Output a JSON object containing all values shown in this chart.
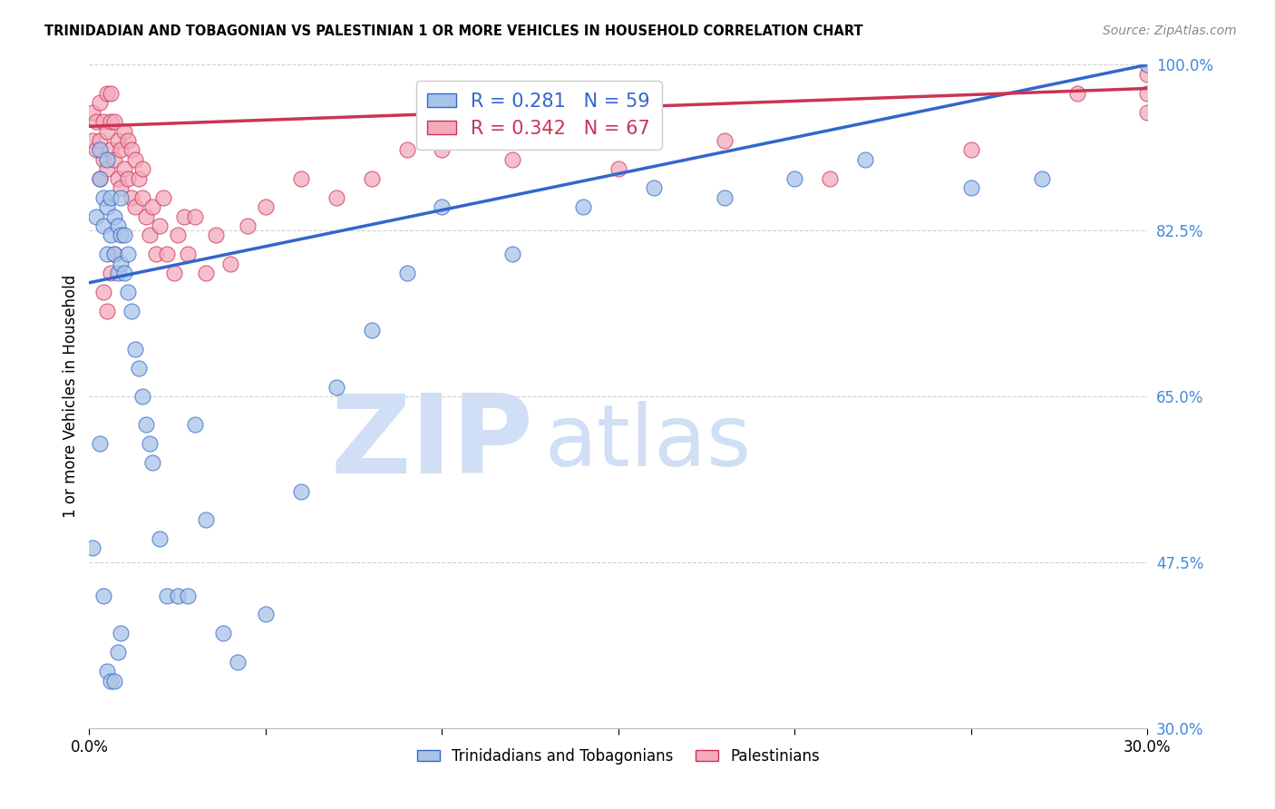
{
  "title": "TRINIDADIAN AND TOBAGONIAN VS PALESTINIAN 1 OR MORE VEHICLES IN HOUSEHOLD CORRELATION CHART",
  "source": "Source: ZipAtlas.com",
  "ylabel": "1 or more Vehicles in Household",
  "xlim": [
    0.0,
    0.3
  ],
  "ylim": [
    0.3,
    1.0
  ],
  "yticks": [
    0.3,
    0.475,
    0.65,
    0.825,
    1.0
  ],
  "ytick_labels": [
    "30.0%",
    "47.5%",
    "65.0%",
    "82.5%",
    "100.0%"
  ],
  "xticks": [
    0.0,
    0.05,
    0.1,
    0.15,
    0.2,
    0.25,
    0.3
  ],
  "xtick_labels": [
    "0.0%",
    "",
    "",
    "",
    "",
    "",
    "30.0%"
  ],
  "blue_R": 0.281,
  "blue_N": 59,
  "pink_R": 0.342,
  "pink_N": 67,
  "blue_color": "#a8c4e8",
  "pink_color": "#f4aabc",
  "blue_line_color": "#3366cc",
  "pink_line_color": "#cc3355",
  "watermark_zip": "ZIP",
  "watermark_atlas": "atlas",
  "watermark_color": "#d0dff5",
  "legend_label_blue": "Trinidadians and Tobagonians",
  "legend_label_pink": "Palestinians",
  "blue_trend_x": [
    0.0,
    0.3
  ],
  "blue_trend_y": [
    0.77,
    1.0
  ],
  "pink_trend_x": [
    0.0,
    0.3
  ],
  "pink_trend_y": [
    0.935,
    0.975
  ],
  "blue_x": [
    0.001,
    0.002,
    0.003,
    0.003,
    0.004,
    0.004,
    0.005,
    0.005,
    0.005,
    0.006,
    0.006,
    0.007,
    0.007,
    0.008,
    0.008,
    0.009,
    0.009,
    0.009,
    0.01,
    0.01,
    0.011,
    0.011,
    0.012,
    0.013,
    0.014,
    0.015,
    0.016,
    0.017,
    0.018,
    0.02,
    0.022,
    0.025,
    0.028,
    0.03,
    0.033,
    0.038,
    0.042,
    0.05,
    0.06,
    0.07,
    0.08,
    0.09,
    0.1,
    0.12,
    0.14,
    0.16,
    0.18,
    0.2,
    0.22,
    0.25,
    0.27,
    0.3,
    0.003,
    0.004,
    0.005,
    0.006,
    0.007,
    0.008,
    0.009
  ],
  "blue_y": [
    0.49,
    0.84,
    0.88,
    0.91,
    0.83,
    0.86,
    0.8,
    0.85,
    0.9,
    0.82,
    0.86,
    0.8,
    0.84,
    0.78,
    0.83,
    0.79,
    0.82,
    0.86,
    0.78,
    0.82,
    0.76,
    0.8,
    0.74,
    0.7,
    0.68,
    0.65,
    0.62,
    0.6,
    0.58,
    0.5,
    0.44,
    0.44,
    0.44,
    0.62,
    0.52,
    0.4,
    0.37,
    0.42,
    0.55,
    0.66,
    0.72,
    0.78,
    0.85,
    0.8,
    0.85,
    0.87,
    0.86,
    0.88,
    0.9,
    0.87,
    0.88,
    1.0,
    0.6,
    0.44,
    0.36,
    0.35,
    0.35,
    0.38,
    0.4
  ],
  "pink_x": [
    0.001,
    0.001,
    0.002,
    0.002,
    0.003,
    0.003,
    0.003,
    0.004,
    0.004,
    0.005,
    0.005,
    0.005,
    0.006,
    0.006,
    0.006,
    0.007,
    0.007,
    0.008,
    0.008,
    0.009,
    0.009,
    0.01,
    0.01,
    0.011,
    0.011,
    0.012,
    0.012,
    0.013,
    0.013,
    0.014,
    0.015,
    0.015,
    0.016,
    0.017,
    0.018,
    0.019,
    0.02,
    0.021,
    0.022,
    0.024,
    0.025,
    0.027,
    0.028,
    0.03,
    0.033,
    0.036,
    0.04,
    0.045,
    0.05,
    0.06,
    0.07,
    0.08,
    0.09,
    0.1,
    0.12,
    0.15,
    0.18,
    0.21,
    0.25,
    0.28,
    0.3,
    0.3,
    0.3,
    0.004,
    0.005,
    0.006,
    0.007
  ],
  "pink_y": [
    0.92,
    0.95,
    0.91,
    0.94,
    0.88,
    0.92,
    0.96,
    0.9,
    0.94,
    0.89,
    0.93,
    0.97,
    0.91,
    0.94,
    0.97,
    0.9,
    0.94,
    0.88,
    0.92,
    0.87,
    0.91,
    0.89,
    0.93,
    0.88,
    0.92,
    0.86,
    0.91,
    0.85,
    0.9,
    0.88,
    0.86,
    0.89,
    0.84,
    0.82,
    0.85,
    0.8,
    0.83,
    0.86,
    0.8,
    0.78,
    0.82,
    0.84,
    0.8,
    0.84,
    0.78,
    0.82,
    0.79,
    0.83,
    0.85,
    0.88,
    0.86,
    0.88,
    0.91,
    0.91,
    0.9,
    0.89,
    0.92,
    0.88,
    0.91,
    0.97,
    0.95,
    0.99,
    0.97,
    0.76,
    0.74,
    0.78,
    0.8
  ]
}
